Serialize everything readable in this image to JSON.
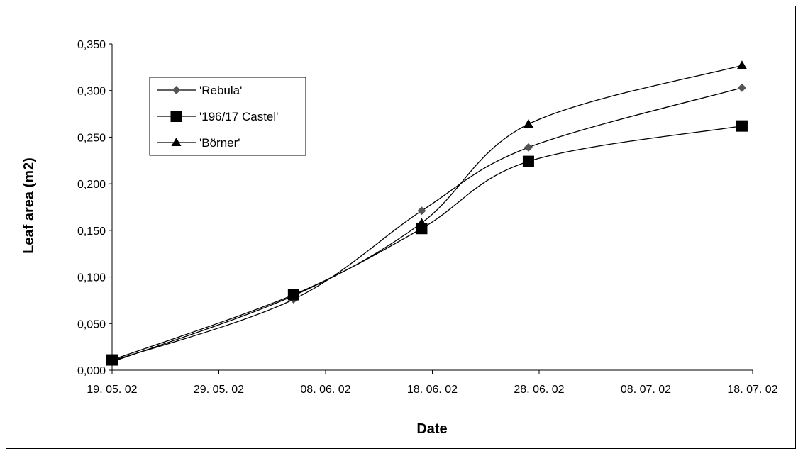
{
  "chart_data": {
    "type": "line",
    "xlabel": "Date",
    "ylabel": "Leaf area (m2)",
    "x_ticks": [
      "19. 05. 02",
      "29. 05. 02",
      "08. 06. 02",
      "18. 06. 02",
      "28. 06. 02",
      "08. 07. 02",
      "18. 07. 02"
    ],
    "y_ticks": [
      "0,000",
      "0,050",
      "0,100",
      "0,150",
      "0,200",
      "0,250",
      "0,300",
      "0,350"
    ],
    "xlim": [
      "2002-05-19",
      "2002-07-18"
    ],
    "ylim": [
      0,
      0.35
    ],
    "x": [
      "2002-05-19",
      "2002-06-05",
      "2002-06-17",
      "2002-06-27",
      "2002-07-17"
    ],
    "series": [
      {
        "name": "'Rebula'",
        "marker": "diamond",
        "color": "#555555",
        "values": [
          0.01,
          0.076,
          0.171,
          0.239,
          0.303
        ]
      },
      {
        "name": "'196/17 Castel'",
        "marker": "square",
        "color": "#000000",
        "values": [
          0.011,
          0.081,
          0.152,
          0.224,
          0.262
        ]
      },
      {
        "name": "'Börner'",
        "marker": "triangle",
        "color": "#000000",
        "values": [
          0.009,
          0.08,
          0.158,
          0.264,
          0.327
        ]
      }
    ],
    "legend_position": "top-left",
    "grid": false
  }
}
